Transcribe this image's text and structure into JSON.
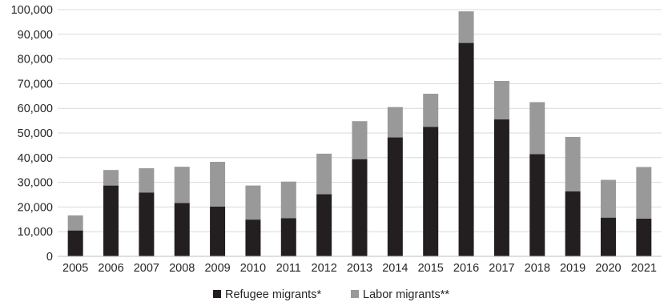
{
  "chart_data": {
    "type": "bar",
    "stacked": true,
    "title": "",
    "xlabel": "",
    "ylabel": "",
    "ylim": [
      0,
      100000
    ],
    "yticks": [
      0,
      10000,
      20000,
      30000,
      40000,
      50000,
      60000,
      70000,
      80000,
      90000,
      100000
    ],
    "ytick_labels": [
      "0",
      "10,000",
      "20,000",
      "30,000",
      "40,000",
      "50,000",
      "60,000",
      "70,000",
      "80,000",
      "90,000",
      "100,000"
    ],
    "grid": true,
    "legend_position": "bottom-center",
    "categories": [
      "2005",
      "2006",
      "2007",
      "2008",
      "2009",
      "2010",
      "2011",
      "2012",
      "2013",
      "2014",
      "2015",
      "2016",
      "2017",
      "2018",
      "2019",
      "2020",
      "2021"
    ],
    "series": [
      {
        "name": "Refugee migrants*",
        "color": "#231f20",
        "values": [
          10500,
          28700,
          25900,
          21600,
          20200,
          14900,
          15500,
          25200,
          39400,
          48200,
          52500,
          86500,
          55500,
          41400,
          26300,
          15700,
          15300
        ]
      },
      {
        "name": "Labor migrants**",
        "color": "#999999",
        "values": [
          6100,
          6300,
          9800,
          14700,
          18100,
          13800,
          14800,
          16400,
          15400,
          12300,
          13400,
          12800,
          15600,
          21100,
          22100,
          15300,
          20900
        ]
      }
    ]
  }
}
